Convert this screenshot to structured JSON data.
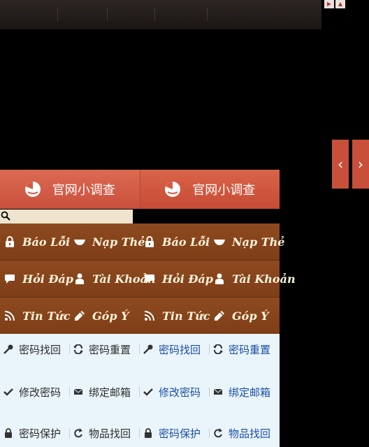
{
  "survey": {
    "buttons": [
      "官网小调查",
      "官网小调查"
    ]
  },
  "menu": {
    "rows": [
      [
        "Báo Lỗi",
        "Nạp Thẻ",
        "Báo Lỗi",
        "Nạp Thẻ"
      ],
      [
        "Hỏi Đáp",
        "Tài Khoản",
        "Hỏi Đáp",
        "Tài Khoản"
      ],
      [
        "Tin Tức",
        "Góp Ý",
        "Tin Tức",
        "Góp Ý"
      ]
    ]
  },
  "links": {
    "rows": [
      [
        "密码找回",
        "密码重置",
        "密码找回",
        "密码重置"
      ],
      [
        "修改密码",
        "绑定邮箱",
        "修改密码",
        "绑定邮箱"
      ],
      [
        "密码保护",
        "物品找回",
        "密码保护",
        "物品找回"
      ]
    ]
  },
  "icons": {
    "menu": [
      [
        "lock-icon",
        "bowl-icon",
        "lock-icon",
        "bowl-icon"
      ],
      [
        "chat-bubble-icon",
        "user-icon",
        "chat-bubble-icon",
        "user-icon"
      ],
      [
        "rss-icon",
        "pencil-icon",
        "rss-icon",
        "pencil-icon"
      ]
    ],
    "links": [
      [
        "key-icon",
        "refresh-icon",
        "key-icon",
        "refresh-icon"
      ],
      [
        "check-icon",
        "envelope-icon",
        "check-icon",
        "envelope-icon"
      ],
      [
        "lock-icon",
        "undo-icon",
        "lock-icon",
        "undo-icon"
      ]
    ]
  },
  "colors": {
    "survey_bg": "#d35c45",
    "menu_bg": "#87451b",
    "menu_text": "#fff3dc",
    "links_bg": "#eaf4fb",
    "link_highlight": "#1a4fa3"
  }
}
